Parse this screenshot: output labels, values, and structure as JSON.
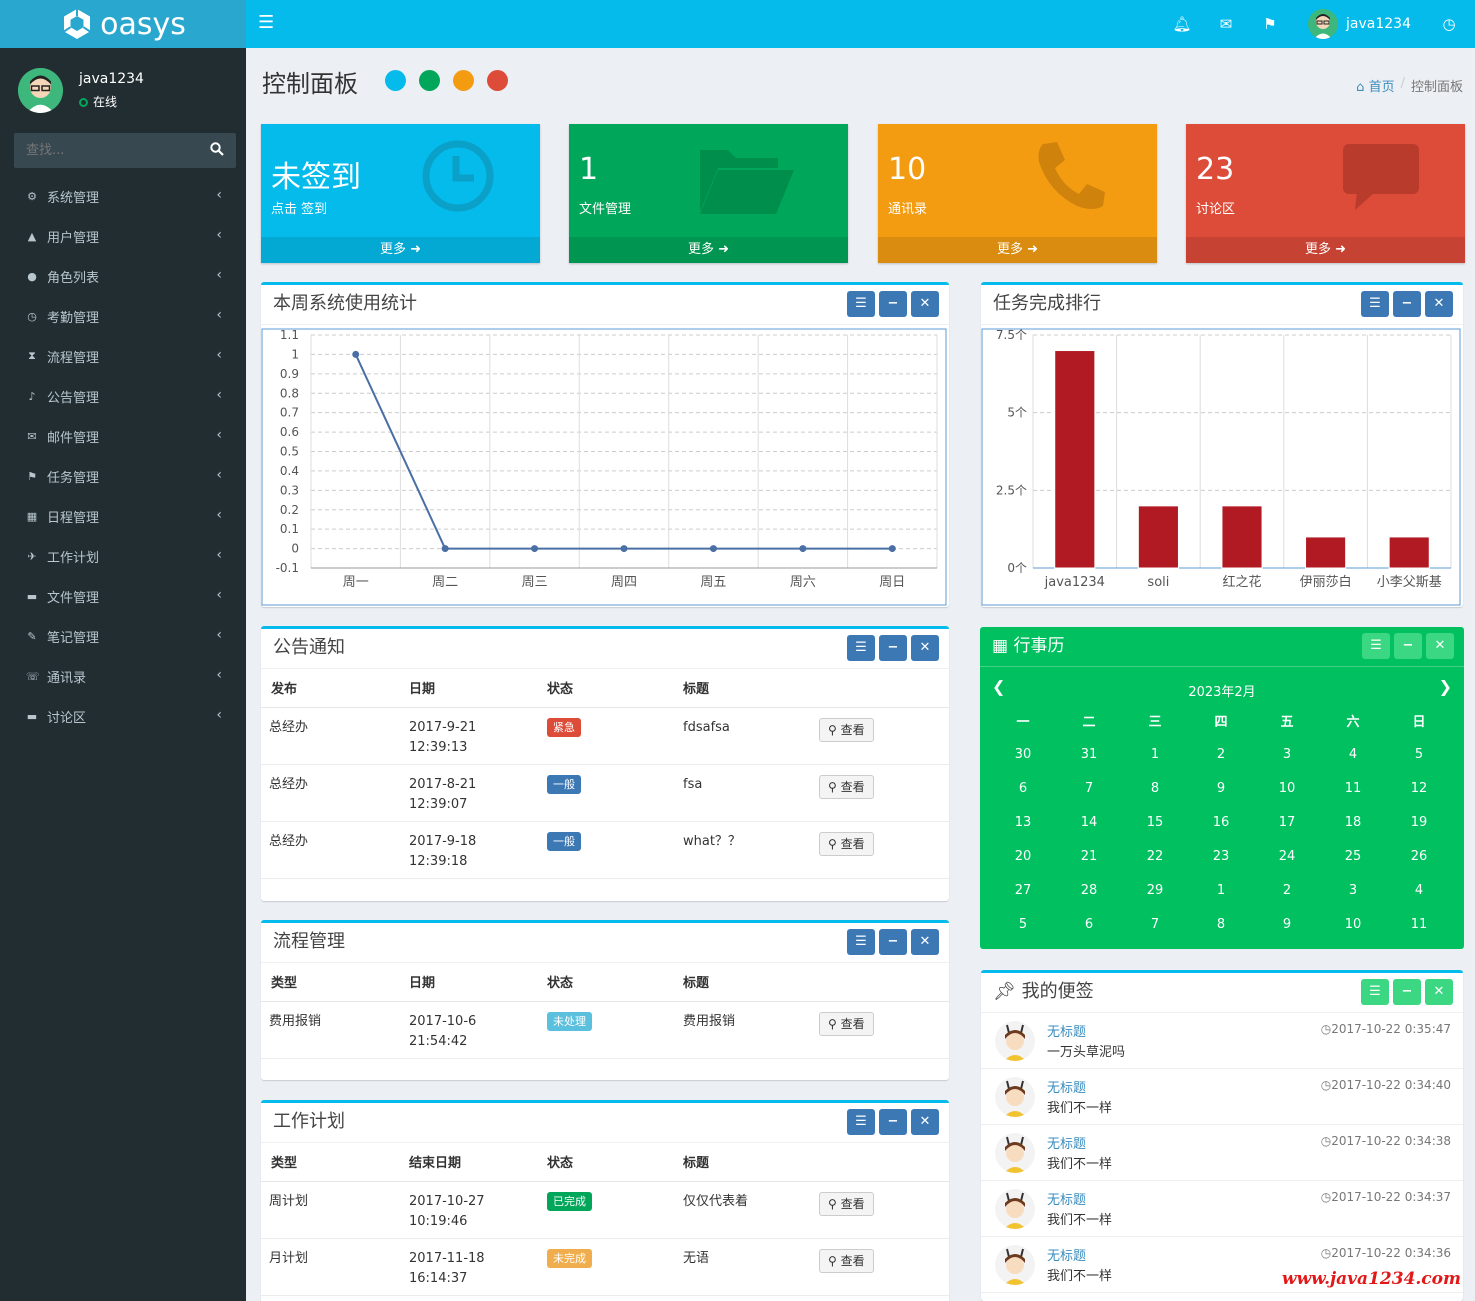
{
  "brand": {
    "name": "oasys"
  },
  "topbar": {
    "user": "java1234",
    "icons": [
      "bell-icon",
      "envelope-icon",
      "flag-icon",
      "clock-icon"
    ]
  },
  "sidebar": {
    "user": {
      "name": "java1234",
      "status": "在线"
    },
    "search_placeholder": "查找...",
    "items": [
      {
        "label": "系统管理",
        "icon": "gear-icon"
      },
      {
        "label": "用户管理",
        "icon": "mortarboard-icon"
      },
      {
        "label": "角色列表",
        "icon": "user-icon"
      },
      {
        "label": "考勤管理",
        "icon": "clock-icon"
      },
      {
        "label": "流程管理",
        "icon": "hourglass-icon"
      },
      {
        "label": "公告管理",
        "icon": "bell-icon"
      },
      {
        "label": "邮件管理",
        "icon": "envelope-icon"
      },
      {
        "label": "任务管理",
        "icon": "flag-icon"
      },
      {
        "label": "日程管理",
        "icon": "calendar-icon"
      },
      {
        "label": "工作计划",
        "icon": "plane-icon"
      },
      {
        "label": "文件管理",
        "icon": "folder-icon"
      },
      {
        "label": "笔记管理",
        "icon": "edit-icon"
      },
      {
        "label": "通讯录",
        "icon": "phone-icon"
      },
      {
        "label": "讨论区",
        "icon": "comment-icon"
      }
    ]
  },
  "page": {
    "title": "控制面板",
    "breadcrumb_home": "首页",
    "breadcrumb_current": "控制面板",
    "theme_colors": [
      "#04bbeb",
      "#00a65a",
      "#f39c12",
      "#dd4b39"
    ]
  },
  "stat_boxes": [
    {
      "big": "未签到",
      "sub": "点击 签到",
      "more": "更多",
      "color": "#04bbeb",
      "icon": "clock-icon"
    },
    {
      "big": "1",
      "sub": "文件管理",
      "more": "更多",
      "color": "#00a65a",
      "icon": "folder-open-icon"
    },
    {
      "big": "10",
      "sub": "通讯录",
      "more": "更多",
      "color": "#f39c12",
      "icon": "phone-icon"
    },
    {
      "big": "23",
      "sub": "讨论区",
      "more": "更多",
      "color": "#dd4b39",
      "icon": "comment-icon"
    }
  ],
  "panels": {
    "usage_title": "本周系统使用统计",
    "ranking_title": "任务完成排行",
    "notice_title": "公告通知",
    "process_title": "流程管理",
    "plan_title": "工作计划",
    "calendar_title": "行事历",
    "notes_title": "我的便签"
  },
  "chart_data": [
    {
      "type": "line",
      "categories": [
        "周一",
        "周二",
        "周三",
        "周四",
        "周五",
        "周六",
        "周日"
      ],
      "series": [
        {
          "values": [
            1,
            0,
            0,
            0,
            0,
            0,
            0
          ]
        }
      ],
      "ylim": [
        -0.1,
        1.1
      ],
      "yticks": [
        "1.1",
        "1",
        "0.9",
        "0.8",
        "0.7",
        "0.6",
        "0.5",
        "0.4",
        "0.3",
        "0.2",
        "0.1",
        "0",
        "-0.1"
      ],
      "grid": true,
      "color": "#4a6fa5"
    },
    {
      "type": "bar",
      "categories": [
        "java1234",
        "soli",
        "红之花",
        "伊丽莎白",
        "小李父斯基"
      ],
      "values": [
        7,
        2,
        2,
        1,
        1
      ],
      "ylim": [
        0,
        7.5
      ],
      "yticks": [
        "7.5个",
        "5个",
        "2.5个",
        "0个"
      ],
      "grid": true,
      "color": "#b11a22"
    }
  ],
  "notice": {
    "headers": [
      "发布",
      "日期",
      "状态",
      "标题"
    ],
    "rows": [
      {
        "publisher": "总经办",
        "date": "2017-9-21",
        "time": "12:39:13",
        "status": "紧急",
        "status_color": "#dd4b39",
        "title": "fdsafsa",
        "action": "查看"
      },
      {
        "publisher": "总经办",
        "date": "2017-8-21",
        "time": "12:39:07",
        "status": "一般",
        "status_color": "#3c78b4",
        "title": "fsa",
        "action": "查看"
      },
      {
        "publisher": "总经办",
        "date": "2017-9-18",
        "time": "12:39:18",
        "status": "一般",
        "status_color": "#3c78b4",
        "title": "what？？",
        "action": "查看"
      }
    ]
  },
  "process": {
    "headers": [
      "类型",
      "日期",
      "状态",
      "标题"
    ],
    "rows": [
      {
        "type": "费用报销",
        "date": "2017-10-6",
        "time": "21:54:42",
        "status": "未处理",
        "status_color": "#5bc0de",
        "title": "费用报销",
        "action": "查看"
      }
    ]
  },
  "plan": {
    "headers": [
      "类型",
      "结束日期",
      "状态",
      "标题"
    ],
    "rows": [
      {
        "type": "周计划",
        "date": "2017-10-27",
        "time": "10:19:46",
        "status": "已完成",
        "status_color": "#00a65a",
        "title": "仅仅代表着",
        "action": "查看"
      },
      {
        "type": "月计划",
        "date": "2017-11-18",
        "time": "16:14:37",
        "status": "未完成",
        "status_color": "#f0ad4e",
        "title": "无语",
        "action": "查看"
      }
    ]
  },
  "calendar": {
    "month": "2023年2月",
    "weekdays": [
      "一",
      "二",
      "三",
      "四",
      "五",
      "六",
      "日"
    ],
    "weeks": [
      [
        "30",
        "31",
        "1",
        "2",
        "3",
        "4",
        "5"
      ],
      [
        "6",
        "7",
        "8",
        "9",
        "10",
        "11",
        "12"
      ],
      [
        "13",
        "14",
        "15",
        "16",
        "17",
        "18",
        "19"
      ],
      [
        "20",
        "21",
        "22",
        "23",
        "24",
        "25",
        "26"
      ],
      [
        "27",
        "28",
        "29",
        "1",
        "2",
        "3",
        "4"
      ],
      [
        "5",
        "6",
        "7",
        "8",
        "9",
        "10",
        "11"
      ]
    ]
  },
  "notes": [
    {
      "title": "无标题",
      "content": "一万头草泥吗",
      "time": "2017-10-22 0:35:47"
    },
    {
      "title": "无标题",
      "content": "我们不一样",
      "time": "2017-10-22 0:34:40"
    },
    {
      "title": "无标题",
      "content": "我们不一样",
      "time": "2017-10-22 0:34:38"
    },
    {
      "title": "无标题",
      "content": "我们不一样",
      "time": "2017-10-22 0:34:37"
    },
    {
      "title": "无标题",
      "content": "我们不一样",
      "time": "2017-10-22 0:34:36"
    }
  ],
  "watermark": "www.java1234.com"
}
